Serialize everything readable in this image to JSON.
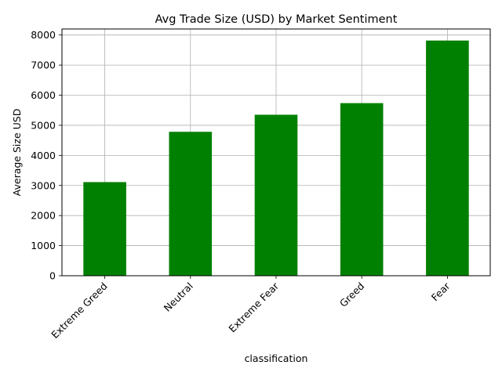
{
  "chart_data": {
    "type": "bar",
    "title": "Avg Trade Size (USD) by Market Sentiment",
    "xlabel": "classification",
    "ylabel": "Average Size USD",
    "categories": [
      "Extreme Greed",
      "Neutral",
      "Extreme Fear",
      "Greed",
      "Fear"
    ],
    "values": [
      3112,
      4783,
      5350,
      5736,
      7816
    ],
    "ylim": [
      0,
      8200
    ],
    "yticks": [
      0,
      1000,
      2000,
      3000,
      4000,
      5000,
      6000,
      7000,
      8000
    ],
    "grid": true,
    "legend": "none",
    "bar_color": "#008000",
    "grid_color": "#b0b0b0"
  }
}
